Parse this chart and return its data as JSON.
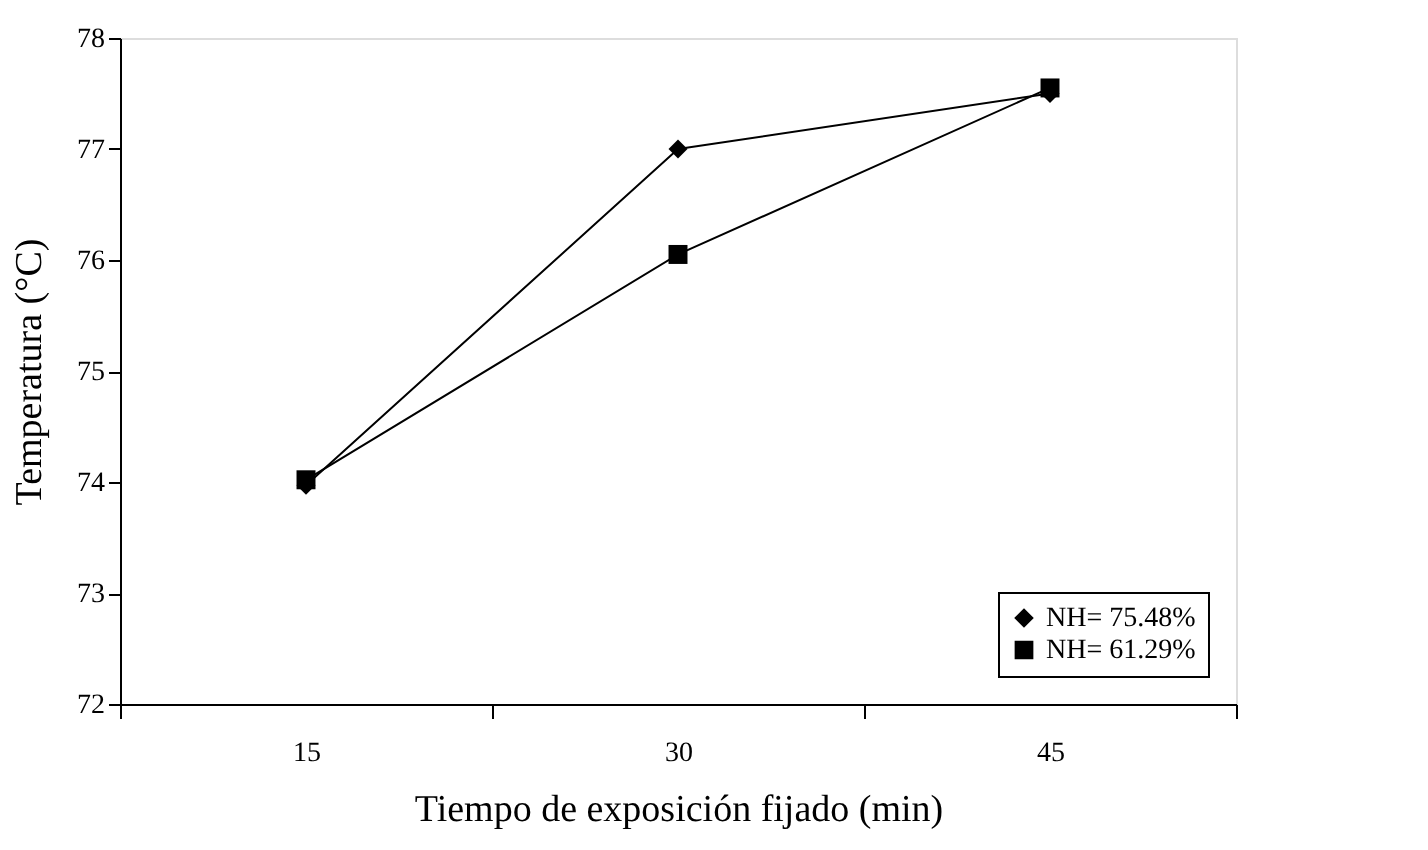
{
  "chart_data": {
    "type": "line",
    "xlabel": "Tiempo de exposición fijado (min)",
    "ylabel": "Temperatura (°C)",
    "categories": [
      "15",
      "30",
      "45"
    ],
    "series": [
      {
        "name": "NH= 75.48%",
        "color": "#000000",
        "marker": "diamond",
        "values": [
          73.97,
          77.0,
          77.5
        ]
      },
      {
        "name": "NH= 61.29%",
        "color": "#000000",
        "marker": "square",
        "values": [
          74.02,
          76.05,
          77.55
        ]
      }
    ],
    "ylim": [
      72,
      78
    ],
    "yticks": [
      72,
      73,
      74,
      75,
      76,
      77,
      78
    ],
    "grid": false,
    "legend": "bottom right",
    "line_style": "solid"
  }
}
